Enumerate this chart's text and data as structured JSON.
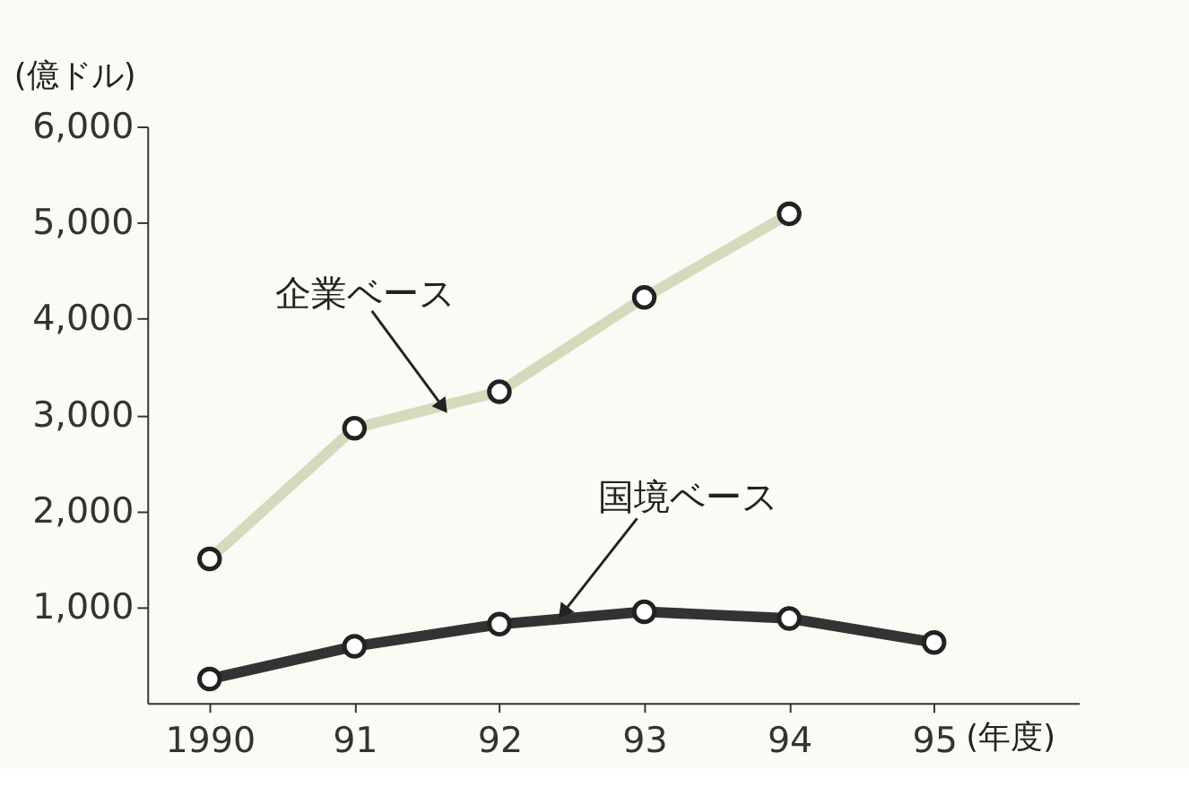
{
  "chart_data": {
    "type": "line",
    "xlabel": "(年度)",
    "ylabel": "(億ドル)",
    "x": [
      1990,
      1991,
      1992,
      1993,
      1994,
      1995
    ],
    "xlim": [
      1989.57,
      1996.0
    ],
    "xticks": [
      1990,
      {
        "value": 1991,
        "label": "91"
      },
      {
        "value": 1992,
        "label": "92"
      },
      {
        "value": 1993,
        "label": "93"
      },
      {
        "value": 1994,
        "label": "94"
      },
      {
        "value": 1995,
        "label": "95"
      }
    ],
    "ylim": [
      0,
      6000
    ],
    "yticks": [
      {
        "value": 1000,
        "label": "1,000"
      },
      {
        "value": 2000,
        "label": "2,000"
      },
      {
        "value": 3000,
        "label": "3,000"
      },
      {
        "value": 4000,
        "label": "4,000"
      },
      {
        "value": 5000,
        "label": "5,000"
      },
      {
        "value": 6000,
        "label": "6,000"
      }
    ],
    "series": [
      {
        "name": "企業ベース",
        "color": "#d6dabd",
        "values": [
          1500,
          2860,
          3240,
          4220,
          5090,
          null
        ]
      },
      {
        "name": "国境ベース",
        "color": "#333333",
        "values": [
          250,
          590,
          820,
          950,
          880,
          630
        ]
      }
    ],
    "marker": "circle",
    "line_style": "solid",
    "grid": false
  }
}
